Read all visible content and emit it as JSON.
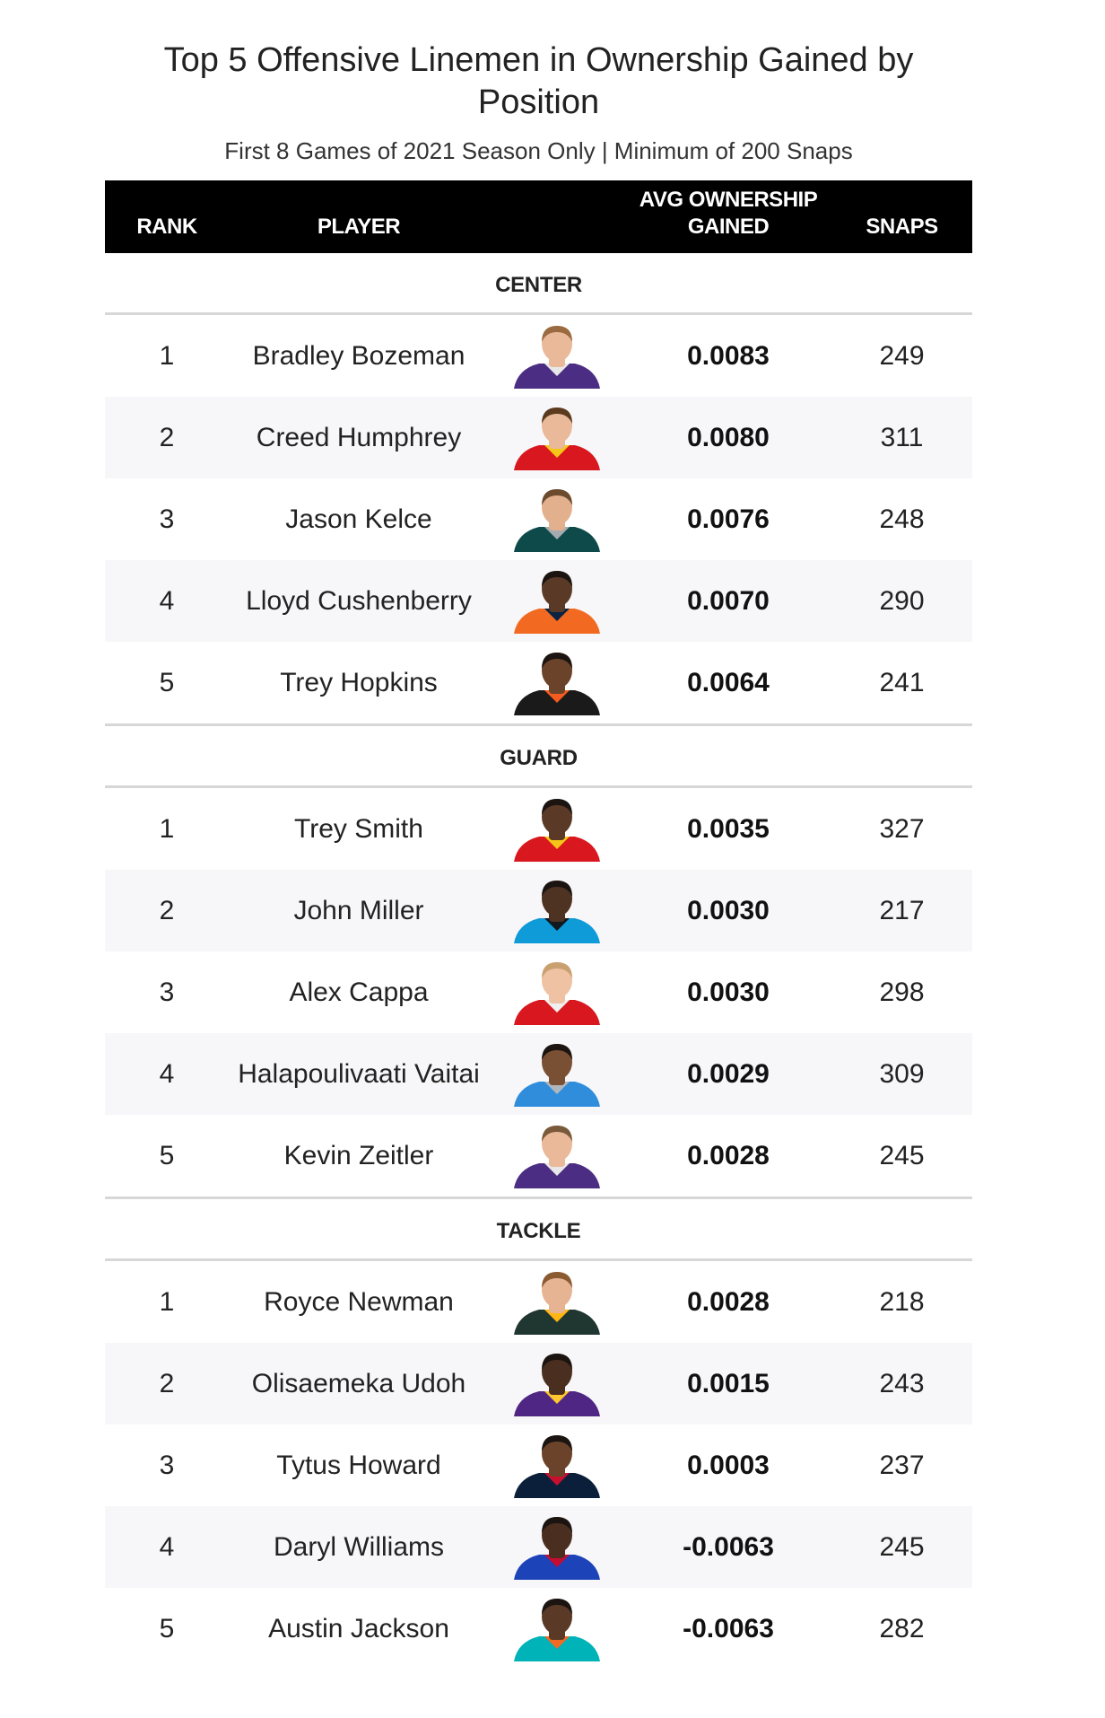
{
  "title": "Top 5 Offensive Linemen in Ownership Gained by Position",
  "subtitle": "First 8 Games of 2021 Season Only | Minimum of 200 Snaps",
  "headers": {
    "rank": "RANK",
    "player": "PLAYER",
    "avg_line1": "AVG OWNERSHIP",
    "avg_line2": "GAINED",
    "snaps": "SNAPS"
  },
  "chart_data": {
    "type": "table",
    "columns": [
      "RANK",
      "PLAYER",
      "AVG OWNERSHIP GAINED",
      "SNAPS"
    ],
    "groups": [
      {
        "name": "CENTER",
        "rows": [
          {
            "rank": "1",
            "player": "Bradley Bozeman",
            "avg": "0.0083",
            "snaps": "249",
            "jersey": "#4b2e83",
            "trim": "#e8e8e8",
            "skin": "#e9b99a",
            "hair": "#9a6a40"
          },
          {
            "rank": "2",
            "player": "Creed Humphrey",
            "avg": "0.0080",
            "snaps": "311",
            "jersey": "#d8171f",
            "trim": "#f5c518",
            "skin": "#e9b99a",
            "hair": "#5b3a1e"
          },
          {
            "rank": "3",
            "player": "Jason Kelce",
            "avg": "0.0076",
            "snaps": "248",
            "jersey": "#0f4a4a",
            "trim": "#a5acaf",
            "skin": "#e3b08e",
            "hair": "#6b4a2e"
          },
          {
            "rank": "4",
            "player": "Lloyd Cushenberry",
            "avg": "0.0070",
            "snaps": "290",
            "jersey": "#f26a21",
            "trim": "#0a2343",
            "skin": "#5a3a26",
            "hair": "#1b1410"
          },
          {
            "rank": "5",
            "player": "Trey Hopkins",
            "avg": "0.0064",
            "snaps": "241",
            "jersey": "#1a1a1a",
            "trim": "#f35b1f",
            "skin": "#6a432a",
            "hair": "#1b1410"
          }
        ]
      },
      {
        "name": "GUARD",
        "rows": [
          {
            "rank": "1",
            "player": "Trey Smith",
            "avg": "0.0035",
            "snaps": "327",
            "jersey": "#d8171f",
            "trim": "#f5c518",
            "skin": "#5a3a26",
            "hair": "#1b1410"
          },
          {
            "rank": "2",
            "player": "John Miller",
            "avg": "0.0030",
            "snaps": "217",
            "jersey": "#0f9ad8",
            "trim": "#101820",
            "skin": "#4e3222",
            "hair": "#1b1410"
          },
          {
            "rank": "3",
            "player": "Alex Cappa",
            "avg": "0.0030",
            "snaps": "298",
            "jersey": "#d8171f",
            "trim": "#f0f0f0",
            "skin": "#efc2a3",
            "hair": "#c9a070"
          },
          {
            "rank": "4",
            "player": "Halapoulivaati Vaitai",
            "avg": "0.0029",
            "snaps": "309",
            "jersey": "#2f8ddc",
            "trim": "#b0b7bc",
            "skin": "#7a5035",
            "hair": "#1b1410"
          },
          {
            "rank": "5",
            "player": "Kevin Zeitler",
            "avg": "0.0028",
            "snaps": "245",
            "jersey": "#4b2e83",
            "trim": "#e8e8e8",
            "skin": "#e9b99a",
            "hair": "#7a5a3a"
          }
        ]
      },
      {
        "name": "TACKLE",
        "rows": [
          {
            "rank": "1",
            "player": "Royce Newman",
            "avg": "0.0028",
            "snaps": "218",
            "jersey": "#203731",
            "trim": "#ffb612",
            "skin": "#e6b493",
            "hair": "#8a5a30"
          },
          {
            "rank": "2",
            "player": "Olisaemeka Udoh",
            "avg": "0.0015",
            "snaps": "243",
            "jersey": "#4f2683",
            "trim": "#ffc62f",
            "skin": "#4a2f20",
            "hair": "#1b1410"
          },
          {
            "rank": "3",
            "player": "Tytus Howard",
            "avg": "0.0003",
            "snaps": "237",
            "jersey": "#0b1f3a",
            "trim": "#c8102e",
            "skin": "#6a432a",
            "hair": "#1b1410"
          },
          {
            "rank": "4",
            "player": "Daryl Williams",
            "avg": "-0.0063",
            "snaps": "245",
            "jersey": "#1d43b8",
            "trim": "#c60c30",
            "skin": "#4a2f20",
            "hair": "#1b1410"
          },
          {
            "rank": "5",
            "player": "Austin Jackson",
            "avg": "-0.0063",
            "snaps": "282",
            "jersey": "#00b3b8",
            "trim": "#f26a21",
            "skin": "#5a3a26",
            "hair": "#1b1410"
          }
        ]
      }
    ]
  }
}
